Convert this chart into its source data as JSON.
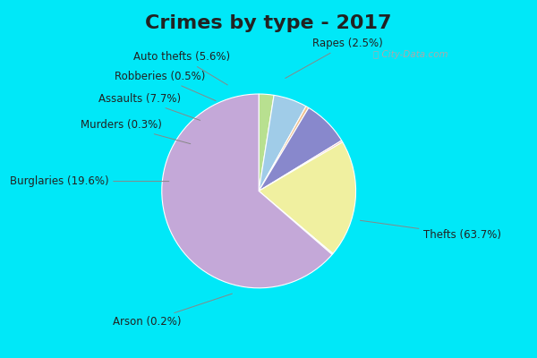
{
  "title": "Crimes by type - 2017",
  "plot_labels": [
    "Rapes",
    "Auto thefts",
    "Robberies",
    "Assaults",
    "Murders",
    "Burglaries",
    "Arson",
    "Thefts"
  ],
  "plot_values": [
    2.5,
    5.6,
    0.5,
    7.7,
    0.3,
    19.6,
    0.2,
    63.7
  ],
  "plot_colors": [
    "#b8e090",
    "#a0cce8",
    "#f0c090",
    "#8888cc",
    "#f0b0b8",
    "#f0f0a0",
    "#d8ccb0",
    "#c4a8d8"
  ],
  "background_cyan": "#00e8f8",
  "background_body": "#d4ece0",
  "title_fontsize": 16,
  "label_fontsize": 8.5
}
